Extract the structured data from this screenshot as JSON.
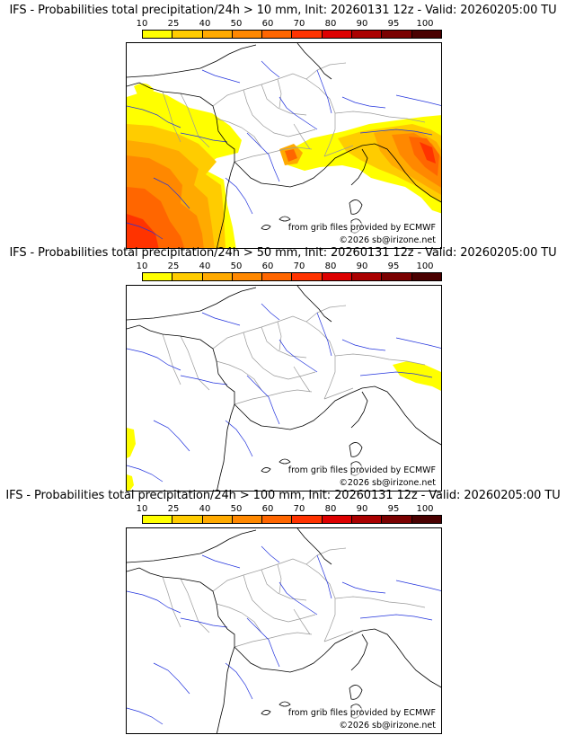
{
  "panels": [
    {
      "title": "IFS - Probabilities total precipitation/24h > 10 mm, Init: 20260131 12z - Valid: 20260205:00 TU",
      "credit_source": "from grib files provided by ECMWF",
      "credit_copyright": "©2026 sb@irizone.net",
      "coverage": "high"
    },
    {
      "title": "IFS - Probabilities total precipitation/24h > 50 mm, Init: 20260131 12z - Valid: 20260205:00 TU",
      "credit_source": "from grib files provided by ECMWF",
      "credit_copyright": "©2026 sb@irizone.net",
      "coverage": "low"
    },
    {
      "title": "IFS - Probabilities total precipitation/24h > 100 mm, Init: 20260131 12z - Valid: 20260205:00 TU",
      "credit_source": "from grib files provided by ECMWF",
      "credit_copyright": "©2026 sb@irizone.net",
      "coverage": "none"
    }
  ],
  "scale": {
    "labels": [
      "10",
      "25",
      "40",
      "50",
      "60",
      "70",
      "80",
      "90",
      "95",
      "100"
    ],
    "colors": [
      "#ffff00",
      "#ffcc00",
      "#ffaa00",
      "#ff8800",
      "#ff6600",
      "#ff3300",
      "#dd0000",
      "#aa0000",
      "#7a0000",
      "#4a0000"
    ]
  },
  "map_colors": {
    "coast": "#000000",
    "borders": "#9a9a9a",
    "rivers": "#2233dd"
  }
}
